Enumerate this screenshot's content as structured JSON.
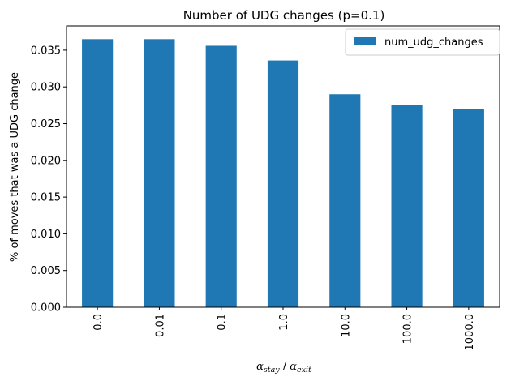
{
  "chart_data": {
    "type": "bar",
    "title": "Number of UDG changes (p=0.1)",
    "xlabel_parts": [
      {
        "text": "α",
        "style": "italic"
      },
      {
        "text": "stay",
        "style": "sub"
      },
      {
        "text": " / ",
        "style": "normal"
      },
      {
        "text": "α",
        "style": "italic"
      },
      {
        "text": "exit",
        "style": "sub"
      }
    ],
    "ylabel": "% of moves that was a UDG change",
    "categories": [
      "0.0",
      "0.01",
      "0.1",
      "1.0",
      "10.0",
      "100.0",
      "1000.0"
    ],
    "series": [
      {
        "name": "num_udg_changes",
        "color": "#1f77b4",
        "values": [
          0.0365,
          0.0365,
          0.0356,
          0.0336,
          0.029,
          0.0275,
          0.027
        ]
      }
    ],
    "ylim": [
      0,
      0.0383
    ],
    "yticks": [
      0.0,
      0.005,
      0.01,
      0.015,
      0.02,
      0.025,
      0.03,
      0.035
    ],
    "ytick_labels": [
      "0.000",
      "0.005",
      "0.010",
      "0.015",
      "0.020",
      "0.025",
      "0.030",
      "0.035"
    ],
    "grid": false,
    "legend_position": "top-right"
  }
}
